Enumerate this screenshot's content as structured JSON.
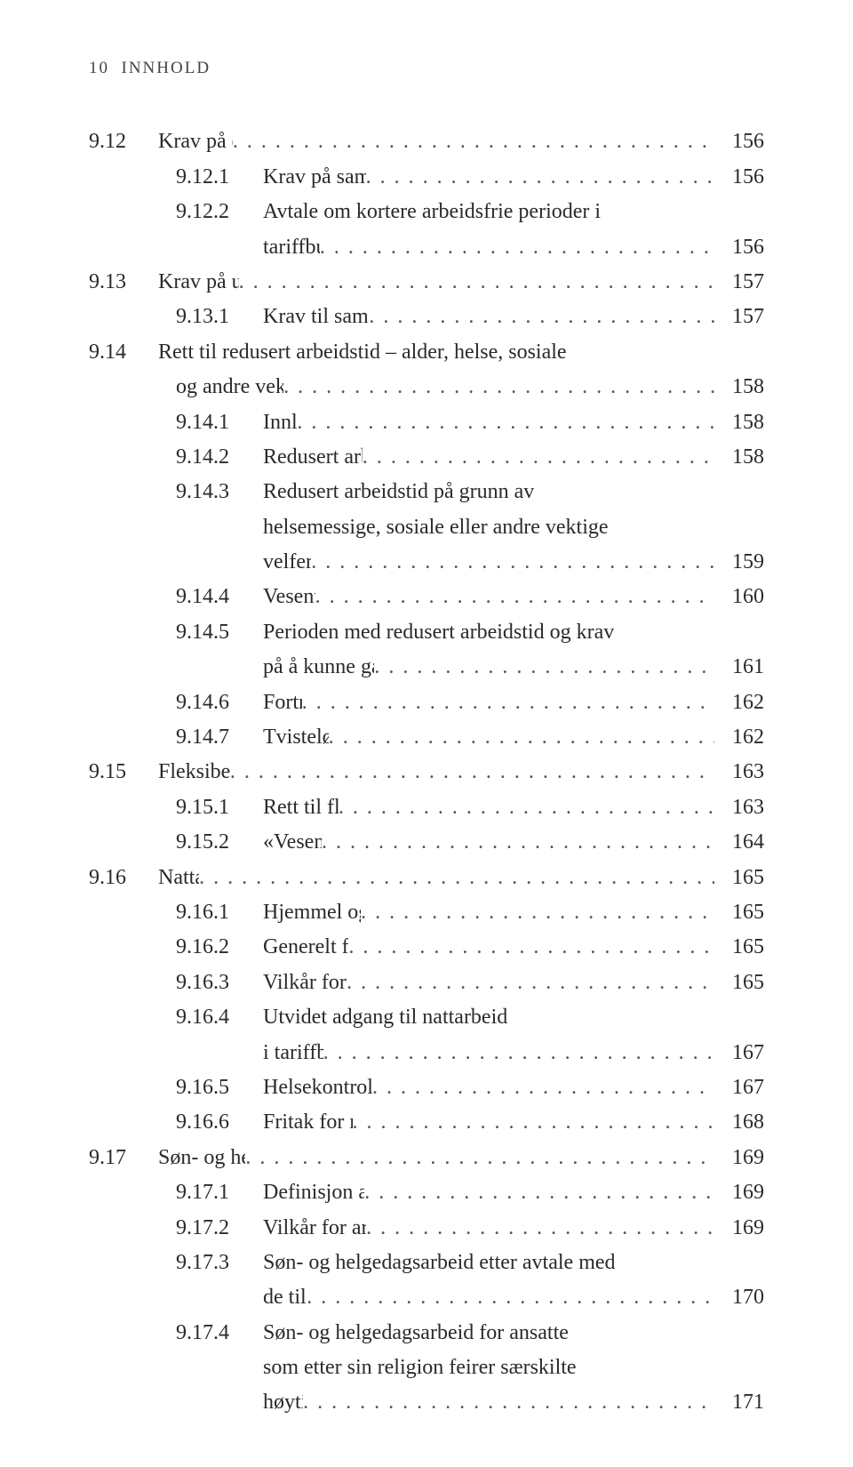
{
  "header": {
    "page_num": "10",
    "running_title": "INNHOLD"
  },
  "entries": [
    {
      "lvl": 1,
      "num": "9.12",
      "lines": [
        "Krav på daglig fritid"
      ],
      "page": "156"
    },
    {
      "lvl": 2,
      "num": "9.12.1",
      "lines": [
        "Krav på sammenhengende daglig fritid"
      ],
      "page": "156"
    },
    {
      "lvl": 2,
      "num": "9.12.2",
      "lines": [
        "Avtale om kortere arbeidsfrie perioder i",
        "tariffbundet bedrift"
      ],
      "page": "156"
    },
    {
      "lvl": 1,
      "num": "9.13",
      "lines": [
        "Krav på ukentlig fritid"
      ],
      "page": "157"
    },
    {
      "lvl": 2,
      "num": "9.13.1",
      "lines": [
        "Krav til sammenhengende ukentlig fritid"
      ],
      "page": "157"
    },
    {
      "lvl": 1,
      "num": "9.14",
      "lines": [
        "Rett til redusert arbeidstid – alder, helse, sosiale",
        "og andre vektige velferdsgrunner"
      ],
      "page": "158"
    },
    {
      "lvl": 2,
      "num": "9.14.1",
      "lines": [
        "Innledning"
      ],
      "page": "158"
    },
    {
      "lvl": 2,
      "num": "9.14.2",
      "lines": [
        "Redusert arbeidstid på grunn av alder"
      ],
      "page": "158"
    },
    {
      "lvl": 2,
      "num": "9.14.3",
      "lines": [
        "Redusert arbeidstid på grunn av",
        "helsemessige, sosiale eller andre vektige",
        "velferdsgrunner"
      ],
      "page": "159"
    },
    {
      "lvl": 2,
      "num": "9.14.4",
      "lines": [
        "Vesentlig ulempe"
      ],
      "page": "160"
    },
    {
      "lvl": 2,
      "num": "9.14.5",
      "lines": [
        "Perioden med redusert arbeidstid og krav",
        "på å kunne gå tilbake til tidligere arbeidstid"
      ],
      "page": "161"
    },
    {
      "lvl": 2,
      "num": "9.14.6",
      "lines": [
        "Fortrinnsrett"
      ],
      "page": "162"
    },
    {
      "lvl": 2,
      "num": "9.14.7",
      "lines": [
        "Tvisteløsningsnemnda"
      ],
      "page": "162"
    },
    {
      "lvl": 1,
      "num": "9.15",
      "lines": [
        "Fleksibel arbeidstid"
      ],
      "page": "163"
    },
    {
      "lvl": 2,
      "num": "9.15.1",
      "lines": [
        "Rett til fleksibel arbeidstid"
      ],
      "page": "163"
    },
    {
      "lvl": 2,
      "num": "9.15.2",
      "lines": [
        "«Vesentlig ulempe»"
      ],
      "page": "164"
    },
    {
      "lvl": 1,
      "num": "9.16",
      "lines": [
        "Nattarbeid"
      ],
      "page": "165"
    },
    {
      "lvl": 2,
      "num": "9.16.1",
      "lines": [
        "Hjemmel og definisjon av nattarbeid"
      ],
      "page": "165"
    },
    {
      "lvl": 2,
      "num": "9.16.2",
      "lines": [
        "Generelt forbud mot nattarbeid"
      ],
      "page": "165"
    },
    {
      "lvl": 2,
      "num": "9.16.3",
      "lines": [
        "Vilkår for å benytte nattarbeid"
      ],
      "page": "165"
    },
    {
      "lvl": 2,
      "num": "9.16.4",
      "lines": [
        "Utvidet adgang til nattarbeid",
        "i tariffbundet bedrift"
      ],
      "page": "167"
    },
    {
      "lvl": 2,
      "num": "9.16.5",
      "lines": [
        "Helsekontroll i forbindelse med nattarbeid"
      ],
      "page": "167"
    },
    {
      "lvl": 2,
      "num": "9.16.6",
      "lines": [
        "Fritak for regelmessig nattarbeid"
      ],
      "page": "168"
    },
    {
      "lvl": 1,
      "num": "9.17",
      "lines": [
        "Søn- og helgedagsarbeid"
      ],
      "page": "169"
    },
    {
      "lvl": 2,
      "num": "9.17.1",
      "lines": [
        "Definisjon av søn- og helgedagsarbeid"
      ],
      "page": "169"
    },
    {
      "lvl": 2,
      "num": "9.17.2",
      "lines": [
        "Vilkår for arbeid på søn- og helgedager"
      ],
      "page": "169"
    },
    {
      "lvl": 2,
      "num": "9.17.3",
      "lines": [
        "Søn- og helgedagsarbeid etter avtale med",
        "de tillitsvalgte"
      ],
      "page": "170"
    },
    {
      "lvl": 2,
      "num": "9.17.4",
      "lines": [
        "Søn- og helgedagsarbeid for ansatte",
        "som etter sin religion feirer særskilte",
        "høytidsdager"
      ],
      "page": "171"
    }
  ]
}
